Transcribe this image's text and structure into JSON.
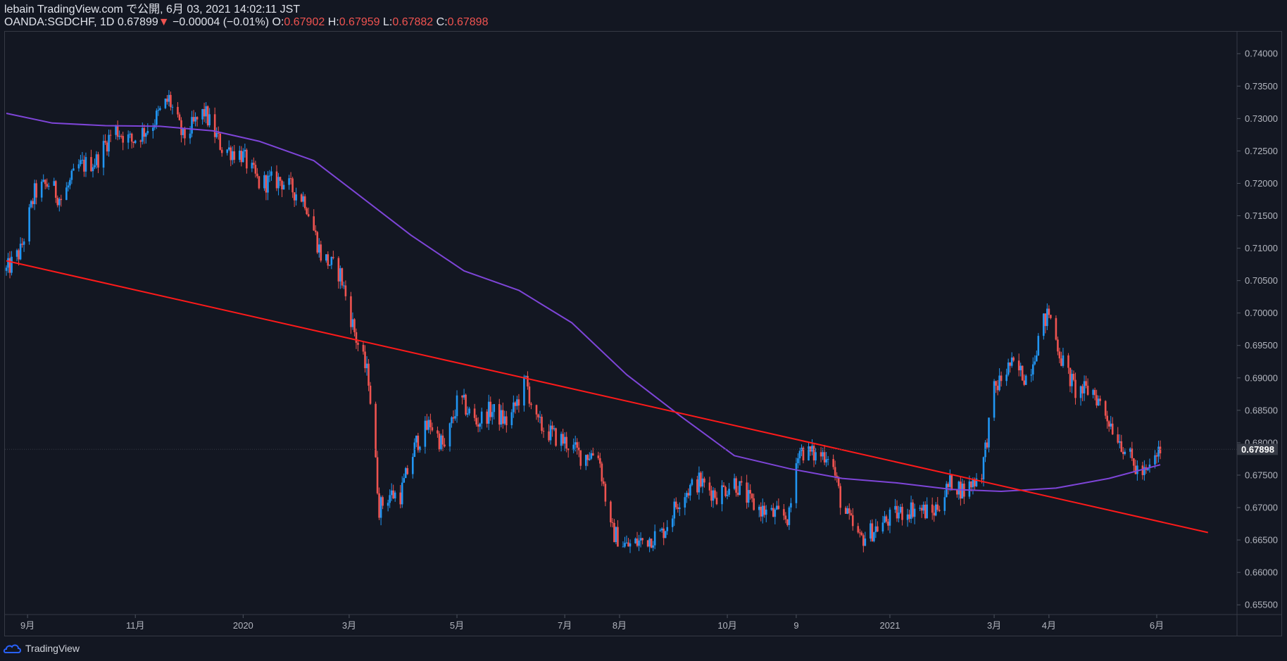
{
  "header": {
    "published": "lebain TradingView.com で公開, 6月 03, 2021 14:02:11 JST",
    "symbol": "OANDA:SGDCHF, 1D",
    "last": "0.67899",
    "down_arrow": "▼",
    "change": "−0.00004 (−0.01%)",
    "o_label": "O:",
    "o_value": "0.67902",
    "h_label": "H:",
    "h_value": "0.67959",
    "l_label": "L:",
    "l_value": "0.67882",
    "c_label": "C:",
    "c_value": "0.67898"
  },
  "footer": {
    "brand": "TradingView"
  },
  "colors": {
    "background": "#131722",
    "up": "#2196f3",
    "down": "#ef5350",
    "ma": "#7e45d8",
    "trendline": "#ff1a1a"
  },
  "chart_data": {
    "type": "candlestick",
    "title": "",
    "symbol": "OANDA:SGDCHF",
    "interval": "1D",
    "last_price_label": "0.67898",
    "ylim": [
      0.6535,
      0.7435
    ],
    "y_ticks": [
      "0.74000",
      "0.73500",
      "0.73000",
      "0.72500",
      "0.72000",
      "0.71500",
      "0.71000",
      "0.70500",
      "0.70000",
      "0.69500",
      "0.69000",
      "0.68500",
      "0.68000",
      "0.67500",
      "0.67000",
      "0.66500",
      "0.66000",
      "0.65500"
    ],
    "x_tick_labels": [
      "9月",
      "11月",
      "2020",
      "3月",
      "5月",
      "7月",
      "8月",
      "10月",
      "9",
      "2021",
      "3月",
      "4月",
      "6月"
    ],
    "price_path": [
      [
        "2019-08-20",
        0.7065
      ],
      [
        "2019-08-28",
        0.7095
      ],
      [
        "2019-09-05",
        0.7185
      ],
      [
        "2019-09-13",
        0.72
      ],
      [
        "2019-09-20",
        0.7175
      ],
      [
        "2019-09-30",
        0.7225
      ],
      [
        "2019-10-10",
        0.7235
      ],
      [
        "2019-10-20",
        0.7285
      ],
      [
        "2019-10-30",
        0.7265
      ],
      [
        "2019-11-10",
        0.729
      ],
      [
        "2019-11-20",
        0.733
      ],
      [
        "2019-11-28",
        0.727
      ],
      [
        "2019-12-10",
        0.731
      ],
      [
        "2019-12-20",
        0.7255
      ],
      [
        "2019-12-31",
        0.7245
      ],
      [
        "2020-01-10",
        0.72
      ],
      [
        "2020-01-22",
        0.7205
      ],
      [
        "2020-02-05",
        0.7175
      ],
      [
        "2020-02-14",
        0.709
      ],
      [
        "2020-02-25",
        0.706
      ],
      [
        "2020-03-05",
        0.696
      ],
      [
        "2020-03-12",
        0.69
      ],
      [
        "2020-03-18",
        0.67
      ],
      [
        "2020-03-24",
        0.672
      ],
      [
        "2020-03-30",
        0.672
      ],
      [
        "2020-04-08",
        0.68
      ],
      [
        "2020-04-16",
        0.683
      ],
      [
        "2020-04-24",
        0.679
      ],
      [
        "2020-05-02",
        0.687
      ],
      [
        "2020-05-12",
        0.683
      ],
      [
        "2020-05-20",
        0.685
      ],
      [
        "2020-05-30",
        0.683
      ],
      [
        "2020-06-09",
        0.6895
      ],
      [
        "2020-06-15",
        0.683
      ],
      [
        "2020-06-25",
        0.681
      ],
      [
        "2020-07-02",
        0.68
      ],
      [
        "2020-07-10",
        0.678
      ],
      [
        "2020-07-20",
        0.6785
      ],
      [
        "2020-07-27",
        0.6665
      ],
      [
        "2020-08-05",
        0.664
      ],
      [
        "2020-08-15",
        0.665
      ],
      [
        "2020-08-25",
        0.666
      ],
      [
        "2020-09-05",
        0.672
      ],
      [
        "2020-09-15",
        0.674
      ],
      [
        "2020-09-25",
        0.672
      ],
      [
        "2020-10-05",
        0.674
      ],
      [
        "2020-10-15",
        0.6705
      ],
      [
        "2020-10-25",
        0.669
      ],
      [
        "2020-11-05",
        0.6685
      ],
      [
        "2020-11-10",
        0.679
      ],
      [
        "2020-11-20",
        0.678
      ],
      [
        "2020-11-28",
        0.6785
      ],
      [
        "2020-12-05",
        0.67
      ],
      [
        "2020-12-15",
        0.665
      ],
      [
        "2020-12-25",
        0.667
      ],
      [
        "2021-01-05",
        0.669
      ],
      [
        "2021-01-15",
        0.67
      ],
      [
        "2021-01-25",
        0.669
      ],
      [
        "2021-02-05",
        0.674
      ],
      [
        "2021-02-12",
        0.6725
      ],
      [
        "2021-02-22",
        0.6755
      ],
      [
        "2021-03-01",
        0.688
      ],
      [
        "2021-03-10",
        0.692
      ],
      [
        "2021-03-20",
        0.69
      ],
      [
        "2021-03-28",
        0.698
      ],
      [
        "2021-04-01",
        0.7
      ],
      [
        "2021-04-08",
        0.693
      ],
      [
        "2021-04-16",
        0.688
      ],
      [
        "2021-04-26",
        0.688
      ],
      [
        "2021-05-06",
        0.683
      ],
      [
        "2021-05-12",
        0.68
      ],
      [
        "2021-05-20",
        0.676
      ],
      [
        "2021-05-26",
        0.675
      ],
      [
        "2021-06-03",
        0.679
      ]
    ],
    "series": [
      {
        "name": "",
        "type": "moving_average",
        "x": [
          "2019-08-20",
          "2019-09-15",
          "2019-10-15",
          "2019-11-15",
          "2019-12-15",
          "2020-01-10",
          "2020-02-10",
          "2020-03-05",
          "2020-04-05",
          "2020-05-05",
          "2020-06-05",
          "2020-07-05",
          "2020-08-05",
          "2020-09-05",
          "2020-10-05",
          "2020-11-05",
          "2020-12-05",
          "2021-01-05",
          "2021-02-05",
          "2021-03-05",
          "2021-04-05",
          "2021-05-05",
          "2021-06-03"
        ],
        "values": [
          0.7308,
          0.7293,
          0.7289,
          0.7288,
          0.7281,
          0.7265,
          0.7235,
          0.7185,
          0.712,
          0.7065,
          0.7035,
          0.6985,
          0.6905,
          0.684,
          0.678,
          0.676,
          0.6745,
          0.6738,
          0.6728,
          0.6725,
          0.673,
          0.6745,
          0.6766
        ]
      },
      {
        "name": "",
        "type": "trendline",
        "x": [
          "2019-08-20",
          "2021-06-30"
        ],
        "values": [
          0.70805,
          0.66615
        ]
      }
    ]
  }
}
